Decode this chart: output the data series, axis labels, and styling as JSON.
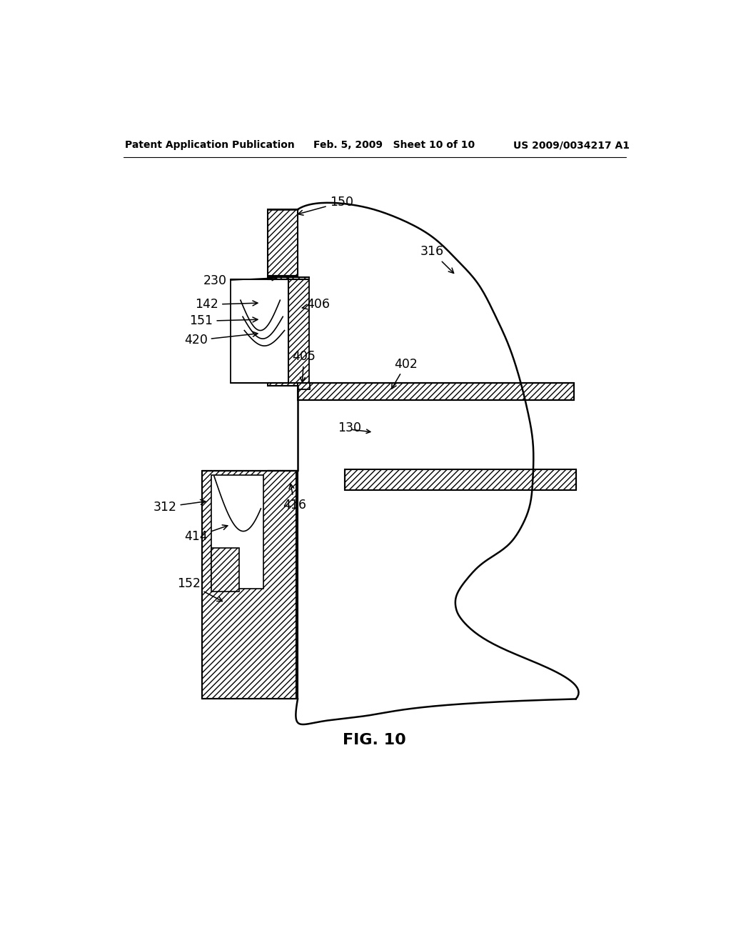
{
  "title": "FIG. 10",
  "header_left": "Patent Application Publication",
  "header_mid": "Feb. 5, 2009   Sheet 10 of 10",
  "header_right": "US 2009/0034217 A1",
  "bg_color": "#ffffff"
}
